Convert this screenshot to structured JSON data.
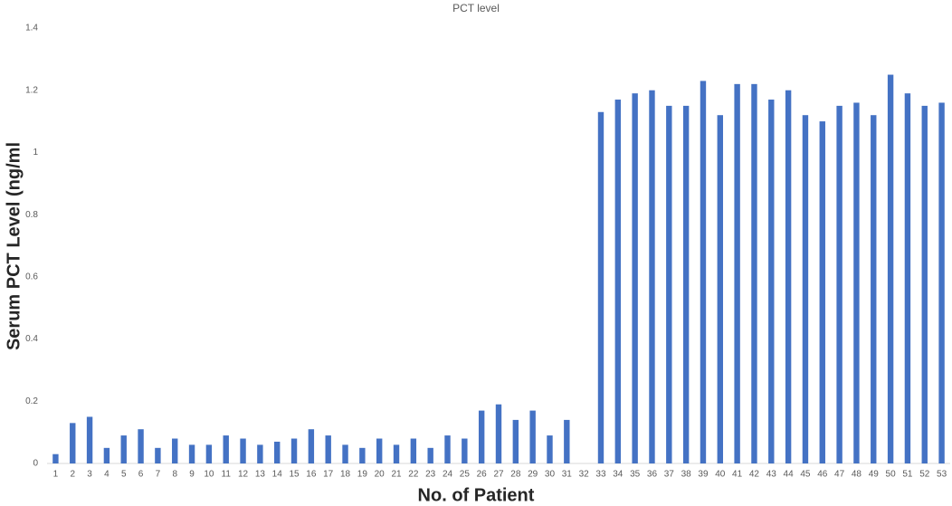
{
  "chart_data": {
    "type": "bar",
    "title": "PCT level",
    "x_label": "No. of Patient",
    "y_label": "Serum PCT Level (ng/ml",
    "categories": [
      "1",
      "2",
      "3",
      "4",
      "5",
      "6",
      "7",
      "8",
      "9",
      "10",
      "11",
      "12",
      "13",
      "14",
      "15",
      "16",
      "17",
      "18",
      "19",
      "20",
      "21",
      "22",
      "23",
      "24",
      "25",
      "26",
      "27",
      "28",
      "29",
      "30",
      "31",
      "32",
      "33",
      "34",
      "35",
      "36",
      "37",
      "38",
      "39",
      "40",
      "41",
      "42",
      "43",
      "44",
      "45",
      "46",
      "47",
      "48",
      "49",
      "50",
      "51",
      "52",
      "53"
    ],
    "values": [
      0.03,
      0.13,
      0.15,
      0.05,
      0.09,
      0.11,
      0.05,
      0.08,
      0.06,
      0.06,
      0.09,
      0.08,
      0.06,
      0.07,
      0.08,
      0.11,
      0.09,
      0.06,
      0.05,
      0.08,
      0.06,
      0.08,
      0.05,
      0.09,
      0.08,
      0.17,
      0.19,
      0.14,
      0.17,
      0.09,
      0.14,
      0,
      1.13,
      1.17,
      1.19,
      1.2,
      1.15,
      1.15,
      1.23,
      1.12,
      1.22,
      1.22,
      1.17,
      1.2,
      1.12,
      1.1,
      1.15,
      1.16,
      1.12,
      1.25,
      1.19,
      1.15,
      1.16
    ],
    "color": "#4472c4",
    "ylim": [
      0,
      1.4
    ],
    "yticks": [
      0,
      0.2,
      0.4,
      0.6,
      0.8,
      1,
      1.2,
      1.4
    ],
    "grid": false
  }
}
